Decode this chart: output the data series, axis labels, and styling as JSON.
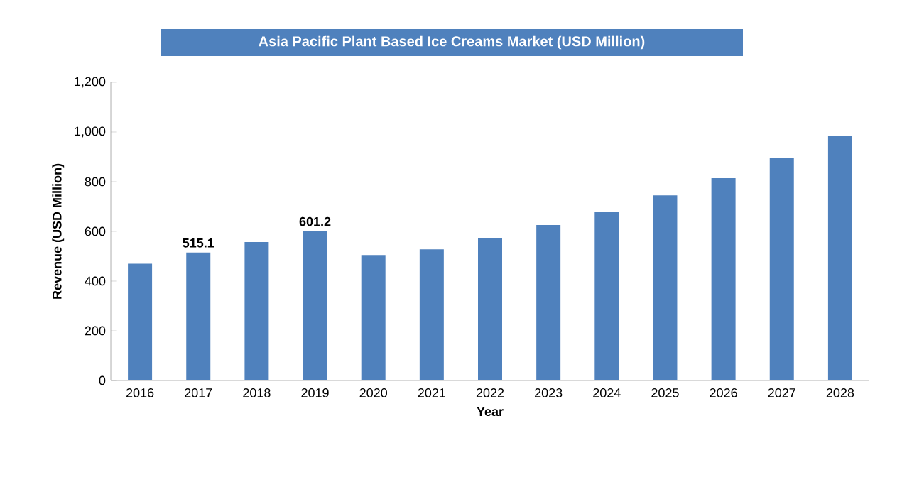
{
  "chart_data": {
    "type": "bar",
    "title": "Asia Pacific Plant Based Ice Creams Market (USD Million)",
    "xlabel": "Year",
    "ylabel": "Revenue (USD Million)",
    "categories": [
      "2016",
      "2017",
      "2018",
      "2019",
      "2020",
      "2021",
      "2022",
      "2023",
      "2024",
      "2025",
      "2026",
      "2027",
      "2028"
    ],
    "values": [
      470,
      515.1,
      557,
      601.2,
      505,
      528,
      574,
      626,
      677,
      745,
      814,
      894,
      985
    ],
    "value_labels": [
      null,
      "515.1",
      null,
      "601.2",
      null,
      null,
      null,
      null,
      null,
      null,
      null,
      null,
      null
    ],
    "color": "#4f81bd",
    "ylim": [
      0,
      1200
    ],
    "yticks": [
      0,
      200,
      400,
      600,
      800,
      {
        "value": 1000,
        "label": "1,000"
      },
      {
        "value": 1200,
        "label": "1,200"
      }
    ],
    "grid": false
  }
}
